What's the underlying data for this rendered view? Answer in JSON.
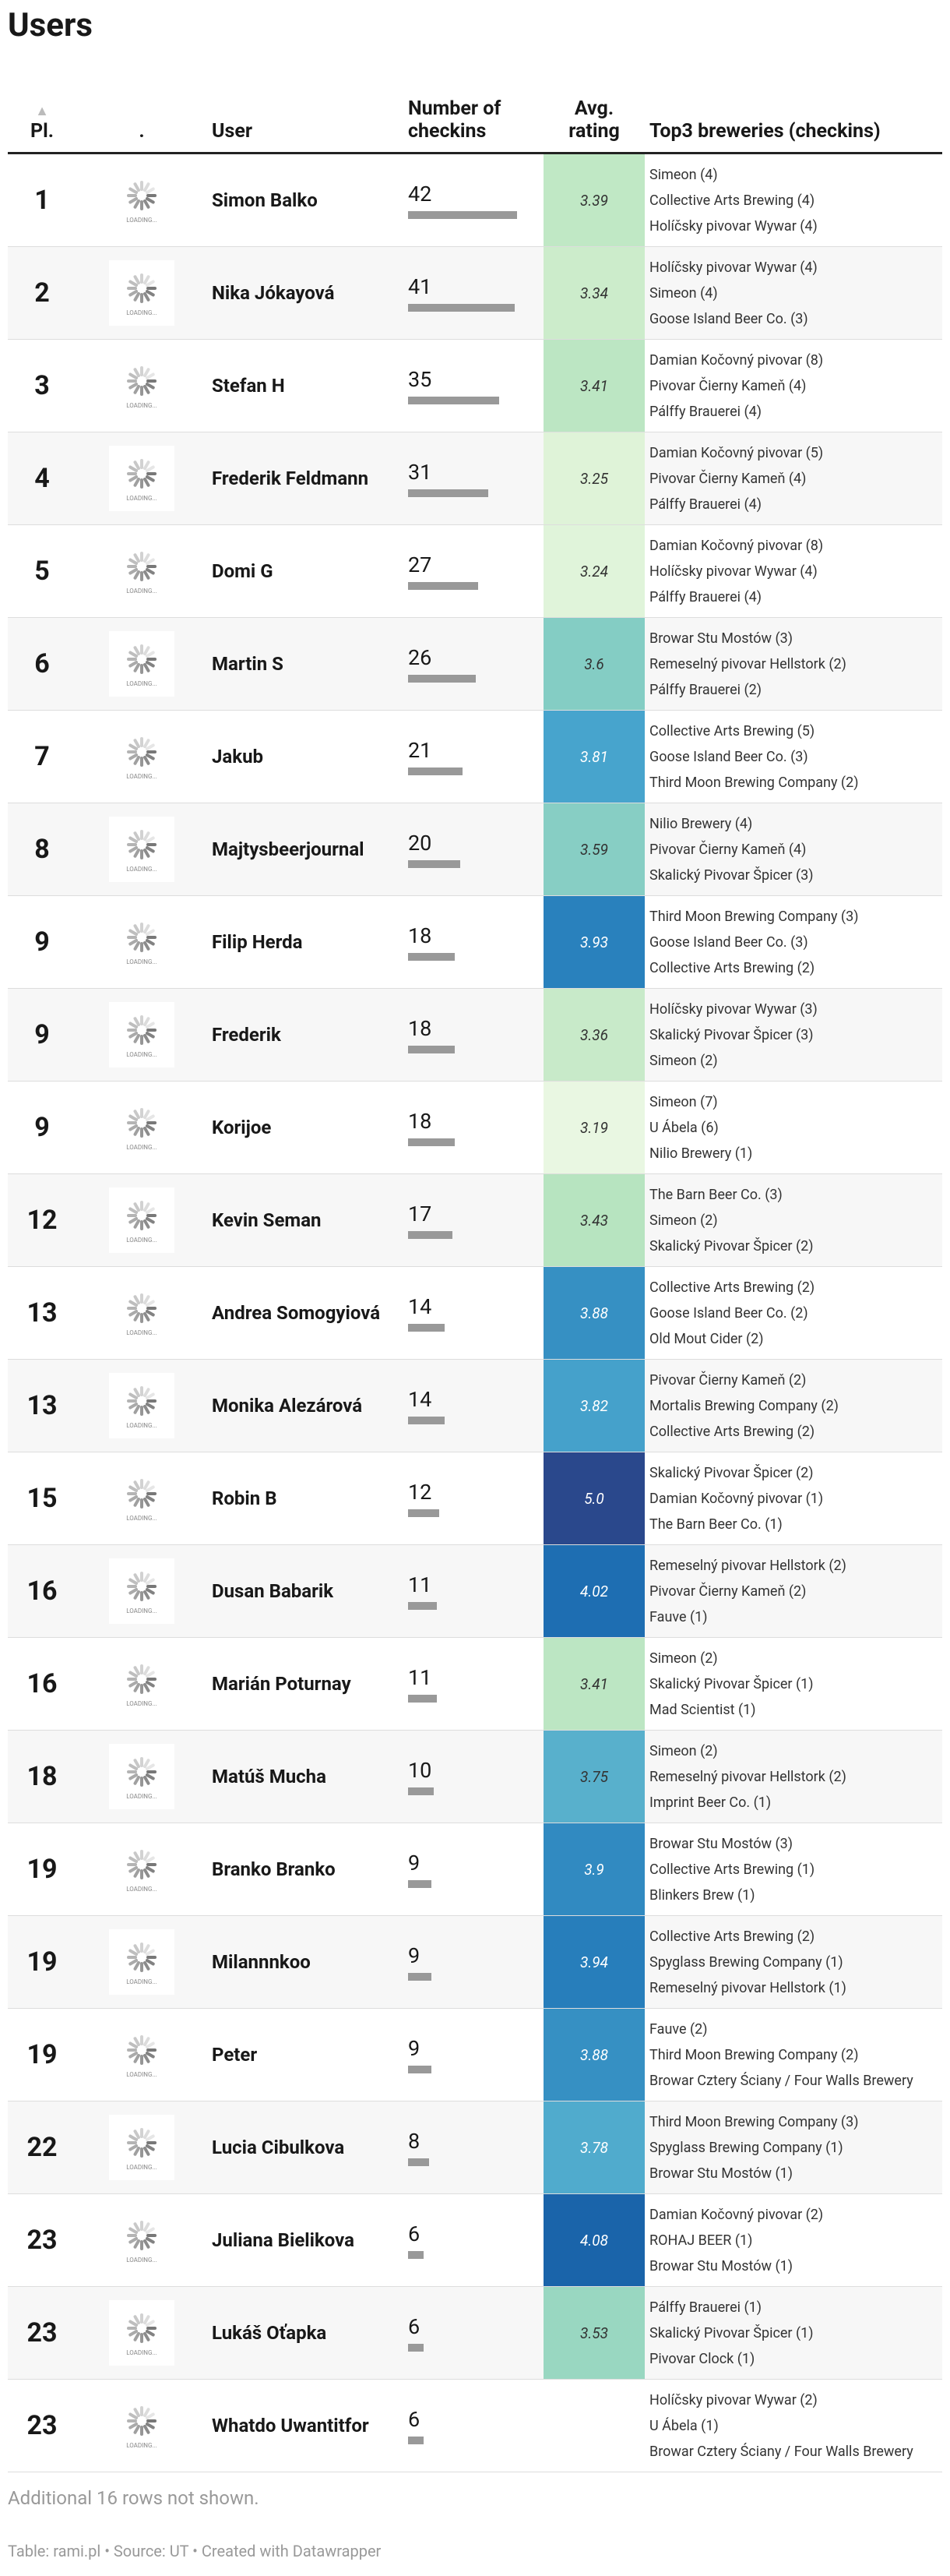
{
  "header": {
    "title": "Users"
  },
  "table": {
    "columns": [
      "Pl.",
      ".",
      "User",
      "Number of checkins",
      "Avg. rating",
      "Top3 breweries (checkins)"
    ],
    "rows": [
      {
        "place": 1,
        "user": "Simon Balko",
        "checkins": 42,
        "rating": "3.39",
        "breweries": [
          "Simeon (4)",
          "Collective Arts Brewing (4)",
          "Holíčsky pivovar Wywar (4)"
        ]
      },
      {
        "place": 2,
        "user": "Nika Jókayová",
        "checkins": 41,
        "rating": "3.34",
        "breweries": [
          "Holíčsky pivovar Wywar (4)",
          "Simeon (4)",
          "Goose Island Beer Co. (3)"
        ]
      },
      {
        "place": 3,
        "user": "Stefan H",
        "checkins": 35,
        "rating": "3.41",
        "breweries": [
          "Damian Kočovný pivovar (8)",
          "Pivovar Čierny Kameň (4)",
          "Pálffy Brauerei (4)"
        ]
      },
      {
        "place": 4,
        "user": "Frederik Feldmann",
        "checkins": 31,
        "rating": "3.25",
        "breweries": [
          "Damian Kočovný pivovar (5)",
          "Pivovar Čierny Kameň (4)",
          "Pálffy Brauerei (4)"
        ]
      },
      {
        "place": 5,
        "user": "Domi G",
        "checkins": 27,
        "rating": "3.24",
        "breweries": [
          "Damian Kočovný pivovar (8)",
          "Holíčsky pivovar Wywar (4)",
          "Pálffy Brauerei (4)"
        ]
      },
      {
        "place": 6,
        "user": "Martin S",
        "checkins": 26,
        "rating": "3.6",
        "breweries": [
          "Browar Stu Mostów (3)",
          "Remeselný pivovar Hellstork (2)",
          "Pálffy Brauerei (2)"
        ]
      },
      {
        "place": 7,
        "user": "Jakub",
        "checkins": 21,
        "rating": "3.81",
        "breweries": [
          "Collective Arts Brewing (5)",
          "Goose Island Beer Co. (3)",
          "Third Moon Brewing Company (2)"
        ]
      },
      {
        "place": 8,
        "user": "Majtysbeerjournal",
        "checkins": 20,
        "rating": "3.59",
        "breweries": [
          "Nilio Brewery (4)",
          "Pivovar Čierny Kameň (4)",
          "Skalický Pivovar Špicer (3)"
        ]
      },
      {
        "place": 9,
        "user": "Filip Herda",
        "checkins": 18,
        "rating": "3.93",
        "breweries": [
          "Third Moon Brewing Company (3)",
          "Goose Island Beer Co. (3)",
          "Collective Arts Brewing (2)"
        ]
      },
      {
        "place": 9,
        "user": "Frederik",
        "checkins": 18,
        "rating": "3.36",
        "breweries": [
          "Holíčsky pivovar Wywar (3)",
          "Skalický Pivovar Špicer (3)",
          "Simeon (2)"
        ]
      },
      {
        "place": 9,
        "user": "Korijoe",
        "checkins": 18,
        "rating": "3.19",
        "breweries": [
          "Simeon (7)",
          "U Ábela (6)",
          "Nilio Brewery (1)"
        ]
      },
      {
        "place": 12,
        "user": "Kevin Seman",
        "checkins": 17,
        "rating": "3.43",
        "breweries": [
          "The Barn Beer Co. (3)",
          "Simeon (2)",
          "Skalický Pivovar Špicer (2)"
        ]
      },
      {
        "place": 13,
        "user": "Andrea Somogyiová",
        "checkins": 14,
        "rating": "3.88",
        "breweries": [
          "Collective Arts Brewing (2)",
          "Goose Island Beer Co. (2)",
          "Old Mout Cider (2)"
        ]
      },
      {
        "place": 13,
        "user": "Monika Alezárová",
        "checkins": 14,
        "rating": "3.82",
        "breweries": [
          "Pivovar Čierny Kameň (2)",
          "Mortalis Brewing Company (2)",
          "Collective Arts Brewing (2)"
        ]
      },
      {
        "place": 15,
        "user": "Robin B",
        "checkins": 12,
        "rating": "5.0",
        "breweries": [
          "Skalický Pivovar Špicer (2)",
          "Damian Kočovný pivovar (1)",
          "The Barn Beer Co. (1)"
        ]
      },
      {
        "place": 16,
        "user": "Dusan Babarik",
        "checkins": 11,
        "rating": "4.02",
        "breweries": [
          "Remeselný pivovar Hellstork (2)",
          "Pivovar Čierny Kameň (2)",
          "Fauve (1)"
        ]
      },
      {
        "place": 16,
        "user": "Marián Poturnay",
        "checkins": 11,
        "rating": "3.41",
        "breweries": [
          "Simeon (2)",
          "Skalický Pivovar Špicer (1)",
          "Mad Scientist (1)"
        ]
      },
      {
        "place": 18,
        "user": "Matúš Mucha",
        "checkins": 10,
        "rating": "3.75",
        "breweries": [
          "Simeon (2)",
          "Remeselný pivovar Hellstork (2)",
          "Imprint Beer Co. (1)"
        ]
      },
      {
        "place": 19,
        "user": "Branko Branko",
        "checkins": 9,
        "rating": "3.9",
        "breweries": [
          "Browar Stu Mostów (3)",
          "Collective Arts Brewing (1)",
          "Blinkers Brew (1)"
        ]
      },
      {
        "place": 19,
        "user": "Milannnkoo",
        "checkins": 9,
        "rating": "3.94",
        "breweries": [
          "Collective Arts Brewing (2)",
          "Spyglass Brewing Company (1)",
          "Remeselný pivovar Hellstork (1)"
        ]
      },
      {
        "place": 19,
        "user": "Peter",
        "checkins": 9,
        "rating": "3.88",
        "breweries": [
          "Fauve (2)",
          "Third Moon Brewing Company (2)",
          "Browar Cztery Ściany / Four Walls Brewery"
        ]
      },
      {
        "place": 22,
        "user": "Lucia Cibulkova",
        "checkins": 8,
        "rating": "3.78",
        "breweries": [
          "Third Moon Brewing Company (3)",
          "Spyglass Brewing Company (1)",
          "Browar Stu Mostów (1)"
        ]
      },
      {
        "place": 23,
        "user": "Juliana Bielikova",
        "checkins": 6,
        "rating": "4.08",
        "breweries": [
          "Damian Kočovný pivovar (2)",
          "ROHAJ BEER (1)",
          "Browar Stu Mostów (1)"
        ]
      },
      {
        "place": 23,
        "user": "Lukáš Oťapka",
        "checkins": 6,
        "rating": "3.53",
        "breweries": [
          "Pálffy Brauerei (1)",
          "Skalický Pivovar Špicer (1)",
          "Pivovar Clock (1)"
        ]
      },
      {
        "place": 23,
        "user": "Whatdo Uwantitfor",
        "checkins": 6,
        "rating": null,
        "breweries": [
          "Holíčsky pivovar Wywar (2)",
          "U Ábela (1)",
          "Browar Cztery Ściany / Four Walls Brewery"
        ]
      }
    ]
  },
  "footer": {
    "note": "Additional 16 rows not shown.",
    "source": "Table: rami.pl • Source: UT • Created with Datawrapper"
  }
}
